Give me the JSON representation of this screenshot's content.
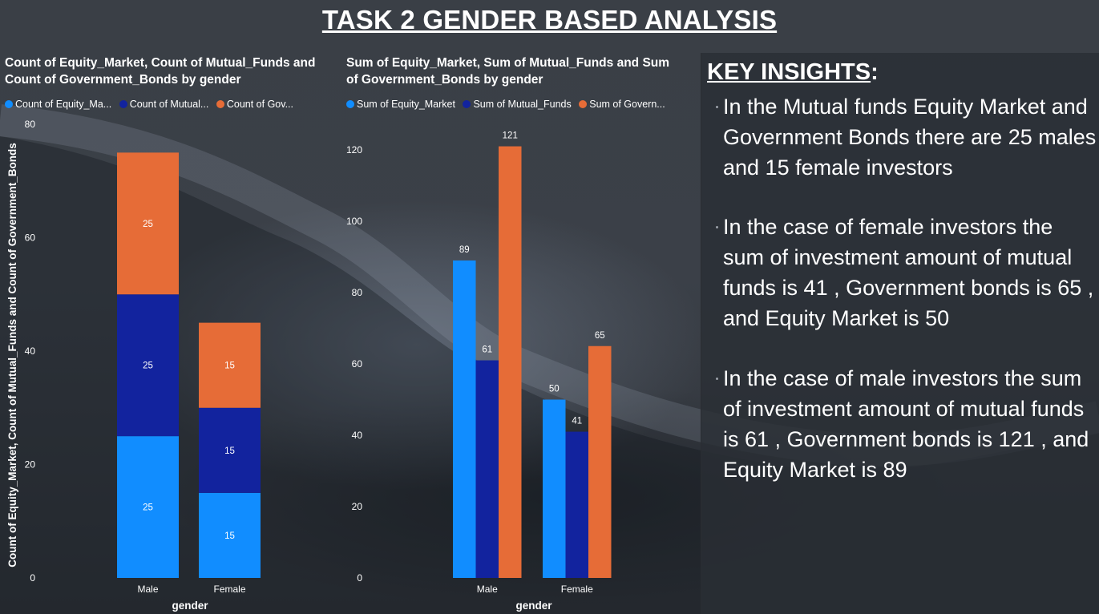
{
  "page": {
    "title": "TASK 2 GENDER BASED ANALYSIS"
  },
  "colors": {
    "equity": "#118dff",
    "mutual": "#12239e",
    "government": "#e66c37"
  },
  "chart_data": [
    {
      "type": "bar",
      "stacked": true,
      "title": "Count of Equity_Market, Count of Mutual_Funds and Count of Government_Bonds by gender",
      "title_lines": [
        "Count of Equity_Market, Count of Mutual_Funds and",
        "Count of Government_Bonds by gender"
      ],
      "legend": [
        "Count of Equity_Ma...",
        "Count of Mutual...",
        "Count of Gov..."
      ],
      "legend_placement": "top-left",
      "categories": [
        "Male",
        "Female"
      ],
      "series": [
        {
          "name": "Count of Equity_Market",
          "values": [
            25,
            15
          ],
          "color": "#118dff"
        },
        {
          "name": "Count of Mutual_Funds",
          "values": [
            25,
            15
          ],
          "color": "#12239e"
        },
        {
          "name": "Count of Government_Bonds",
          "values": [
            25,
            15
          ],
          "color": "#e66c37"
        }
      ],
      "xlabel": "gender",
      "ylabel": "Count of Equity_Market, Count of Mutual_Funds and Count of Government_Bonds",
      "ylim": [
        0,
        80
      ],
      "yticks": [
        0,
        20,
        40,
        60,
        80
      ],
      "grid": false
    },
    {
      "type": "bar",
      "stacked": false,
      "title": "Sum of Equity_Market, Sum of Mutual_Funds and Sum of Government_Bonds by gender",
      "title_lines": [
        "Sum of Equity_Market, Sum of Mutual_Funds and Sum",
        "of Government_Bonds by gender"
      ],
      "legend": [
        "Sum of Equity_Market",
        "Sum of Mutual_Funds",
        "Sum of Govern..."
      ],
      "legend_placement": "top-left",
      "categories": [
        "Male",
        "Female"
      ],
      "series": [
        {
          "name": "Sum of Equity_Market",
          "values": [
            89,
            50
          ],
          "color": "#118dff"
        },
        {
          "name": "Sum of Mutual_Funds",
          "values": [
            61,
            41
          ],
          "color": "#12239e"
        },
        {
          "name": "Sum of Government_Bonds",
          "values": [
            121,
            65
          ],
          "color": "#e66c37"
        }
      ],
      "xlabel": "gender",
      "ylabel": "",
      "ylim": [
        0,
        128
      ],
      "yticks": [
        0,
        20,
        40,
        60,
        80,
        100,
        120
      ],
      "grid": false
    }
  ],
  "insights": {
    "heading": "KEY INSIGHTS",
    "heading_suffix": ":",
    "items": [
      "In the Mutual funds Equity Market and Government Bonds there are 25 males and 15 female investors",
      "In the case of female investors the sum of investment amount of mutual funds  is 41 , Government bonds is 65 , and Equity Market is 50",
      "In the case of male investors the sum of investment amount of mutual funds  is 61 , Government bonds is 121 , and Equity Market is 89"
    ]
  }
}
